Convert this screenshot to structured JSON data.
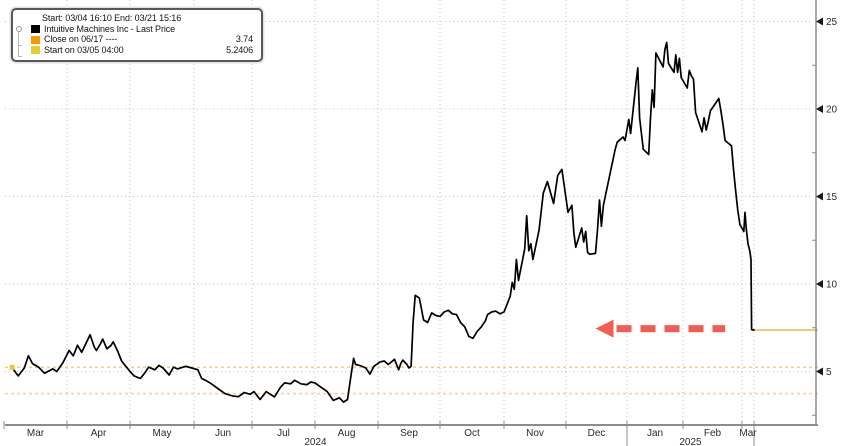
{
  "legend": {
    "range": "Start: 03/04 16:10 End: 03/21 15:16",
    "items": [
      {
        "label": "Intuitive Machines Inc - Last Price",
        "value": "",
        "color": "#000000"
      },
      {
        "label": "Close on 06/17 ----",
        "value": "3.74",
        "color": "#F59C00"
      },
      {
        "label": "Start on 03/05 04:00",
        "value": "5.2406",
        "color": "#E4CC35"
      }
    ]
  },
  "axes": {
    "y_tick_labels": [
      "5",
      "10",
      "15",
      "20",
      "25"
    ],
    "x_month_labels": [
      "Mar",
      "Apr",
      "May",
      "Jun",
      "Jul",
      "Aug",
      "Sep",
      "Oct",
      "Nov",
      "Dec",
      "Jan",
      "Feb",
      "Mar"
    ],
    "year_labels": [
      "2024",
      "2025"
    ]
  },
  "colors": {
    "series_line": "#000000",
    "grid_dots": "#c3c3c3",
    "axis_line": "#8c8c8c",
    "tick_text": "#2b2b2b",
    "close_ref_line": "#f8cf9d",
    "start_ref_line": "#efd183",
    "last_price_line": "#ecc157",
    "start_marker": "#e4cc35",
    "arrow_red": "#f24b40"
  },
  "chart_data": {
    "type": "line",
    "title": "Intuitive Machines Inc - Last Price",
    "x_range": [
      "2024-03-05",
      "2025-03-21"
    ],
    "ylim": [
      2,
      26.2
    ],
    "y_ticks": [
      5,
      10,
      15,
      20,
      25
    ],
    "y_minor_ticks": [
      2.5,
      7.5,
      12.5,
      17.5,
      22.5
    ],
    "grid": true,
    "legend_position": "top-left",
    "series": [
      {
        "name": "Intuitive Machines Inc - Last Price",
        "color": "#000000",
        "points": [
          [
            "2024-03-05",
            5.24
          ],
          [
            "2024-03-07",
            4.9
          ],
          [
            "2024-03-08",
            4.75
          ],
          [
            "2024-03-11",
            5.2
          ],
          [
            "2024-03-13",
            5.9
          ],
          [
            "2024-03-15",
            5.45
          ],
          [
            "2024-03-18",
            5.25
          ],
          [
            "2024-03-21",
            4.9
          ],
          [
            "2024-03-25",
            5.15
          ],
          [
            "2024-03-27",
            5.0
          ],
          [
            "2024-03-30",
            5.5
          ],
          [
            "2024-04-02",
            6.2
          ],
          [
            "2024-04-04",
            5.9
          ],
          [
            "2024-04-06",
            6.5
          ],
          [
            "2024-04-08",
            6.1
          ],
          [
            "2024-04-10",
            6.6
          ],
          [
            "2024-04-12",
            7.1
          ],
          [
            "2024-04-14",
            6.4
          ],
          [
            "2024-04-15",
            6.2
          ],
          [
            "2024-04-17",
            6.6
          ],
          [
            "2024-04-18",
            6.85
          ],
          [
            "2024-04-20",
            6.3
          ],
          [
            "2024-04-22",
            6.5
          ],
          [
            "2024-04-23",
            6.7
          ],
          [
            "2024-04-25",
            6.2
          ],
          [
            "2024-04-27",
            5.6
          ],
          [
            "2024-04-29",
            5.3
          ],
          [
            "2024-05-01",
            5.0
          ],
          [
            "2024-05-03",
            4.75
          ],
          [
            "2024-05-06",
            4.6
          ],
          [
            "2024-05-08",
            4.9
          ],
          [
            "2024-05-10",
            5.25
          ],
          [
            "2024-05-13",
            5.1
          ],
          [
            "2024-05-15",
            5.35
          ],
          [
            "2024-05-17",
            5.2
          ],
          [
            "2024-05-20",
            4.8
          ],
          [
            "2024-05-22",
            5.25
          ],
          [
            "2024-05-24",
            5.15
          ],
          [
            "2024-05-28",
            5.3
          ],
          [
            "2024-05-31",
            5.2
          ],
          [
            "2024-06-03",
            5.1
          ],
          [
            "2024-06-05",
            4.6
          ],
          [
            "2024-06-07",
            4.5
          ],
          [
            "2024-06-10",
            4.3
          ],
          [
            "2024-06-13",
            4.05
          ],
          [
            "2024-06-17",
            3.74
          ],
          [
            "2024-06-21",
            3.6
          ],
          [
            "2024-06-24",
            3.56
          ],
          [
            "2024-06-27",
            3.8
          ],
          [
            "2024-06-30",
            3.7
          ],
          [
            "2024-07-02",
            3.85
          ],
          [
            "2024-07-05",
            3.4
          ],
          [
            "2024-07-08",
            3.85
          ],
          [
            "2024-07-10",
            3.7
          ],
          [
            "2024-07-12",
            3.55
          ],
          [
            "2024-07-15",
            4.1
          ],
          [
            "2024-07-17",
            4.35
          ],
          [
            "2024-07-20",
            4.3
          ],
          [
            "2024-07-22",
            4.5
          ],
          [
            "2024-07-25",
            4.3
          ],
          [
            "2024-07-28",
            4.25
          ],
          [
            "2024-07-30",
            4.4
          ],
          [
            "2024-08-01",
            4.35
          ],
          [
            "2024-08-04",
            4.1
          ],
          [
            "2024-08-07",
            3.85
          ],
          [
            "2024-08-10",
            3.35
          ],
          [
            "2024-08-13",
            3.5
          ],
          [
            "2024-08-15",
            3.25
          ],
          [
            "2024-08-17",
            3.4
          ],
          [
            "2024-08-19",
            5.0
          ],
          [
            "2024-08-20",
            5.75
          ],
          [
            "2024-08-21",
            5.4
          ],
          [
            "2024-08-23",
            5.35
          ],
          [
            "2024-08-26",
            5.2
          ],
          [
            "2024-08-28",
            4.85
          ],
          [
            "2024-08-30",
            5.3
          ],
          [
            "2024-09-02",
            5.55
          ],
          [
            "2024-09-04",
            5.6
          ],
          [
            "2024-09-06",
            5.4
          ],
          [
            "2024-09-09",
            5.7
          ],
          [
            "2024-09-11",
            5.1
          ],
          [
            "2024-09-12",
            5.45
          ],
          [
            "2024-09-13",
            5.65
          ],
          [
            "2024-09-15",
            5.4
          ],
          [
            "2024-09-16",
            5.2
          ],
          [
            "2024-09-17",
            5.3
          ],
          [
            "2024-09-18",
            7.8
          ],
          [
            "2024-09-19",
            9.35
          ],
          [
            "2024-09-21",
            9.2
          ],
          [
            "2024-09-22",
            8.6
          ],
          [
            "2024-09-23",
            7.95
          ],
          [
            "2024-09-25",
            7.8
          ],
          [
            "2024-09-27",
            8.35
          ],
          [
            "2024-09-29",
            8.2
          ],
          [
            "2024-10-01",
            8.15
          ],
          [
            "2024-10-03",
            8.4
          ],
          [
            "2024-10-05",
            8.5
          ],
          [
            "2024-10-07",
            8.3
          ],
          [
            "2024-10-09",
            8.25
          ],
          [
            "2024-10-11",
            7.8
          ],
          [
            "2024-10-13",
            7.55
          ],
          [
            "2024-10-15",
            7.0
          ],
          [
            "2024-10-17",
            6.9
          ],
          [
            "2024-10-19",
            7.3
          ],
          [
            "2024-10-21",
            7.55
          ],
          [
            "2024-10-23",
            7.9
          ],
          [
            "2024-10-24",
            8.25
          ],
          [
            "2024-10-26",
            8.4
          ],
          [
            "2024-10-28",
            8.45
          ],
          [
            "2024-10-30",
            8.3
          ],
          [
            "2024-11-01",
            8.4
          ],
          [
            "2024-11-04",
            9.3
          ],
          [
            "2024-11-05",
            10.1
          ],
          [
            "2024-11-06",
            9.7
          ],
          [
            "2024-11-07",
            11.4
          ],
          [
            "2024-11-08",
            10.2
          ],
          [
            "2024-11-11",
            12.0
          ],
          [
            "2024-11-12",
            13.9
          ],
          [
            "2024-11-13",
            11.9
          ],
          [
            "2024-11-14",
            12.3
          ],
          [
            "2024-11-15",
            11.4
          ],
          [
            "2024-11-18",
            13.1
          ],
          [
            "2024-11-20",
            15.2
          ],
          [
            "2024-11-22",
            15.85
          ],
          [
            "2024-11-25",
            14.6
          ],
          [
            "2024-11-27",
            16.2
          ],
          [
            "2024-11-29",
            16.55
          ],
          [
            "2024-12-02",
            14.1
          ],
          [
            "2024-12-04",
            14.5
          ],
          [
            "2024-12-05",
            12.9
          ],
          [
            "2024-12-06",
            12.1
          ],
          [
            "2024-12-09",
            13.2
          ],
          [
            "2024-12-10",
            12.4
          ],
          [
            "2024-12-11",
            13.0
          ],
          [
            "2024-12-12",
            11.8
          ],
          [
            "2024-12-13",
            11.7
          ],
          [
            "2024-12-16",
            11.75
          ],
          [
            "2024-12-17",
            13.1
          ],
          [
            "2024-12-18",
            14.8
          ],
          [
            "2024-12-19",
            13.3
          ],
          [
            "2024-12-20",
            14.5
          ],
          [
            "2024-12-23",
            16.1
          ],
          [
            "2024-12-26",
            17.7
          ],
          [
            "2024-12-27",
            18.1
          ],
          [
            "2024-12-30",
            18.4
          ],
          [
            "2024-12-31",
            18.2
          ],
          [
            "2025-01-02",
            19.4
          ],
          [
            "2025-01-03",
            18.6
          ],
          [
            "2025-01-06",
            21.5
          ],
          [
            "2025-01-07",
            22.35
          ],
          [
            "2025-01-08",
            19.5
          ],
          [
            "2025-01-10",
            17.7
          ],
          [
            "2025-01-13",
            17.4
          ],
          [
            "2025-01-14",
            19.5
          ],
          [
            "2025-01-15",
            21.1
          ],
          [
            "2025-01-16",
            20.1
          ],
          [
            "2025-01-17",
            23.2
          ],
          [
            "2025-01-21",
            22.4
          ],
          [
            "2025-01-22",
            23.4
          ],
          [
            "2025-01-23",
            23.8
          ],
          [
            "2025-01-24",
            22.6
          ],
          [
            "2025-01-27",
            22.1
          ],
          [
            "2025-01-28",
            23.1
          ],
          [
            "2025-01-29",
            22.1
          ],
          [
            "2025-01-30",
            22.9
          ],
          [
            "2025-01-31",
            21.8
          ],
          [
            "2025-02-03",
            21.2
          ],
          [
            "2025-02-04",
            22.2
          ],
          [
            "2025-02-05",
            21.9
          ],
          [
            "2025-02-06",
            21.7
          ],
          [
            "2025-02-07",
            19.8
          ],
          [
            "2025-02-10",
            18.7
          ],
          [
            "2025-02-11",
            19.5
          ],
          [
            "2025-02-12",
            18.8
          ],
          [
            "2025-02-13",
            19.3
          ],
          [
            "2025-02-14",
            19.9
          ],
          [
            "2025-02-18",
            20.6
          ],
          [
            "2025-02-19",
            19.9
          ],
          [
            "2025-02-20",
            19.1
          ],
          [
            "2025-02-21",
            18.2
          ],
          [
            "2025-02-24",
            17.9
          ],
          [
            "2025-02-25",
            16.5
          ],
          [
            "2025-02-26",
            15.3
          ],
          [
            "2025-02-27",
            14.2
          ],
          [
            "2025-02-28",
            13.4
          ],
          [
            "2025-03-04",
            13.0
          ],
          [
            "2025-03-06",
            14.1
          ],
          [
            "2025-03-08",
            13.2
          ],
          [
            "2025-03-11",
            12.3
          ],
          [
            "2025-03-14",
            11.9
          ],
          [
            "2025-03-16",
            11.4
          ],
          [
            "2025-03-17",
            7.4
          ],
          [
            "2025-03-21",
            7.37
          ]
        ]
      }
    ],
    "reference_lines": [
      {
        "label": "Close on 06/17",
        "value": 3.74,
        "style": "dotted",
        "color_key": "close_ref_line"
      },
      {
        "label": "Start on 03/05 04:00",
        "value": 5.2406,
        "style": "dotted",
        "color_key": "start_ref_line"
      },
      {
        "label": "Last price",
        "value": 7.37,
        "style": "solid",
        "from": "2025-03-17",
        "color_key": "last_price_line"
      }
    ],
    "annotations": [
      {
        "type": "arrow",
        "direction": "left",
        "y": 7.45,
        "x_tip": "2024-12-16",
        "x_tail": "2025-02-21",
        "color_key": "arrow_red"
      }
    ],
    "start_marker": {
      "date": "2024-03-05",
      "value": 5.24
    }
  }
}
